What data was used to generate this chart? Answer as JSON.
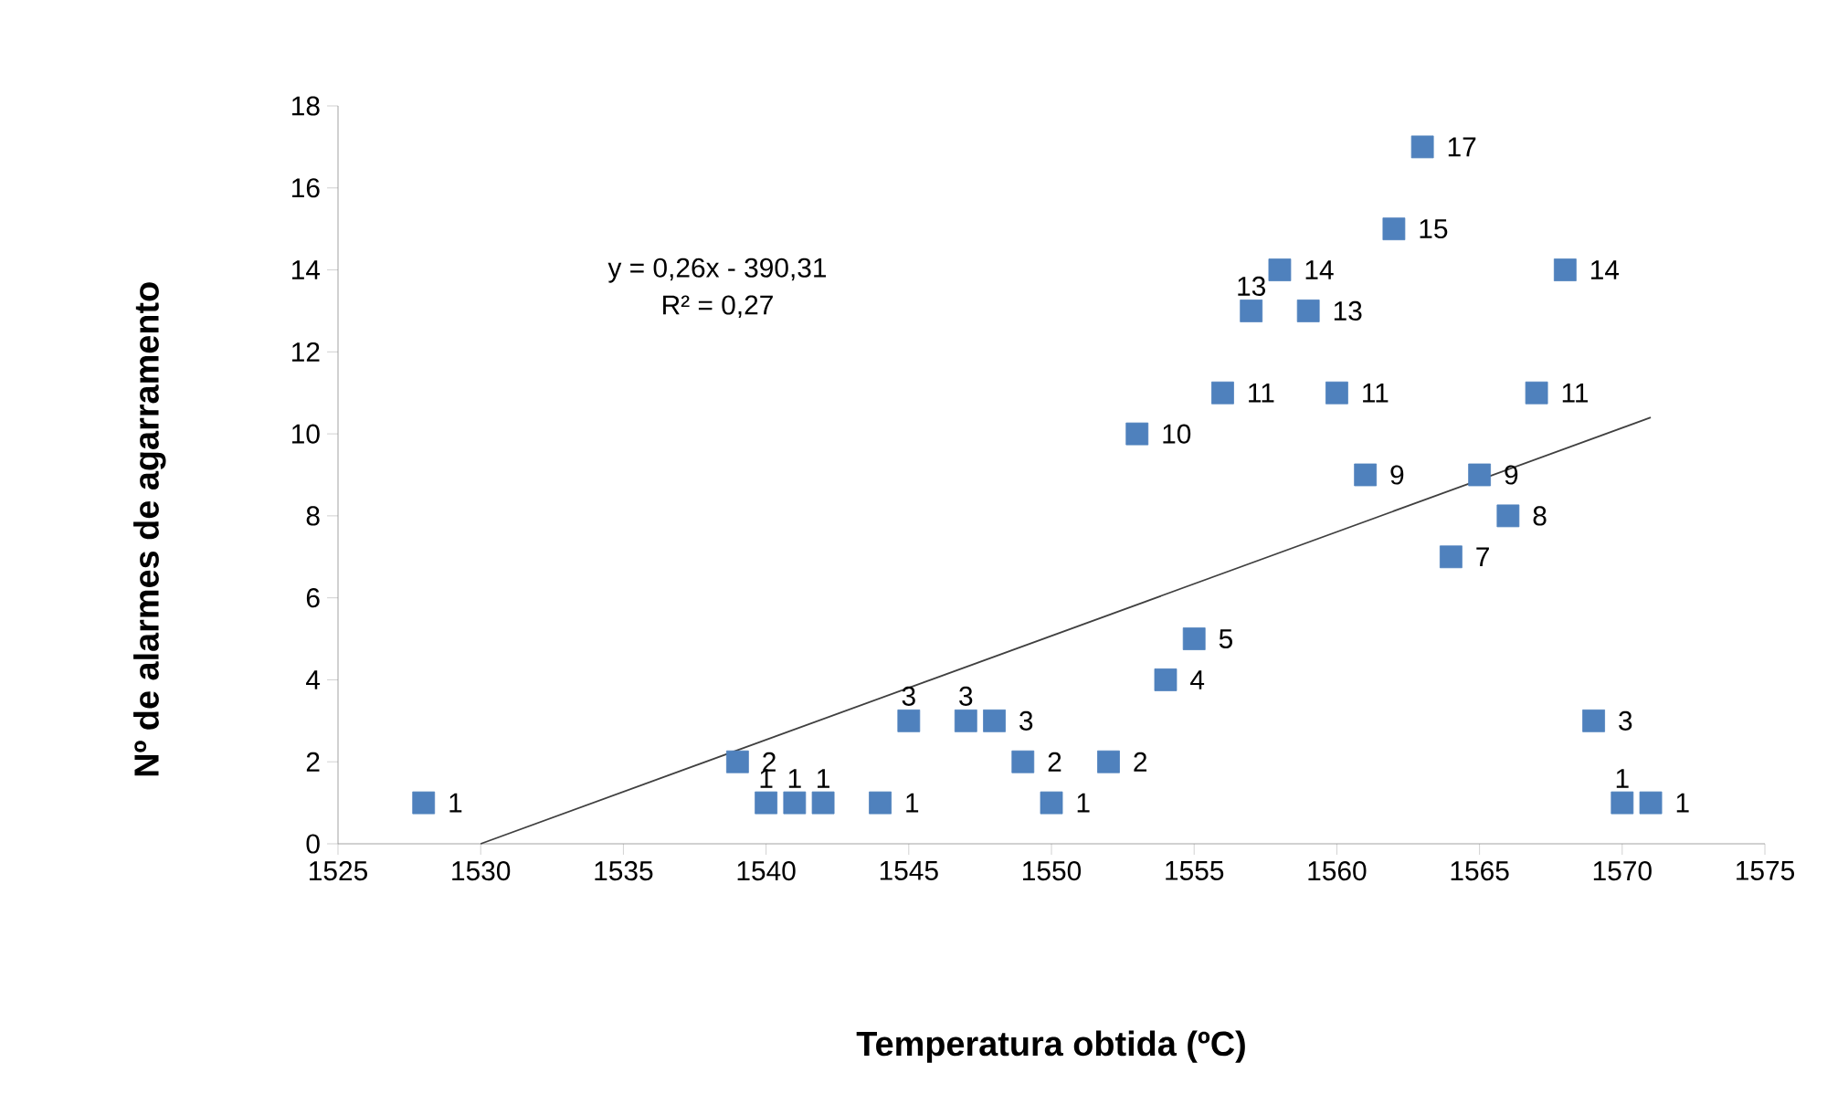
{
  "chart_data": {
    "type": "scatter",
    "xlabel": "Temperatura obtida (ºC)",
    "ylabel": "Nº de alarmes de agarramento",
    "annotations": [
      "y = 0,26x - 390,31",
      "R² = 0,27"
    ],
    "xlim": [
      1525,
      1575
    ],
    "xticks": [
      1525,
      1530,
      1535,
      1540,
      1545,
      1550,
      1555,
      1560,
      1565,
      1570,
      1575
    ],
    "ylim": [
      0,
      18
    ],
    "yticks": [
      0,
      2,
      4,
      6,
      8,
      10,
      12,
      14,
      16,
      18
    ],
    "grid": false,
    "legend": false,
    "marker": "square",
    "data_labels": true,
    "series": [
      {
        "color": "#4f81bd",
        "x": [
          1528,
          1539,
          1540,
          1541,
          1542,
          1544,
          1545,
          1547,
          1548,
          1549,
          1550,
          1552,
          1553,
          1554,
          1555,
          1556,
          1557,
          1558,
          1559,
          1560,
          1561,
          1562,
          1563,
          1564,
          1565,
          1566,
          1567,
          1568,
          1569,
          1570,
          1571
        ],
        "values": [
          1,
          2,
          1,
          1,
          1,
          1,
          3,
          3,
          3,
          2,
          1,
          2,
          10,
          4,
          5,
          11,
          13,
          14,
          13,
          11,
          9,
          15,
          17,
          7,
          9,
          8,
          11,
          14,
          3,
          1,
          1
        ]
      },
      {
        "type": "line",
        "marker": "none",
        "data_labels": false,
        "color": "#404040",
        "x": [
          1530,
          1571
        ],
        "values": [
          0,
          10.4
        ]
      }
    ]
  }
}
